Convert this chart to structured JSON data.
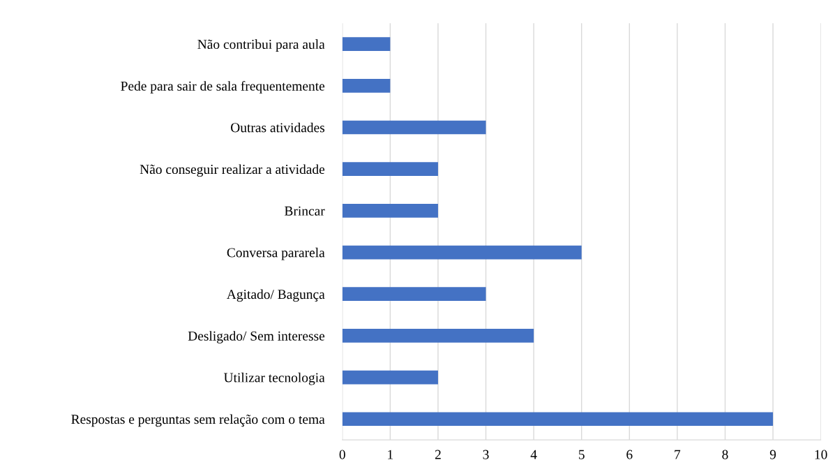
{
  "chart_data": {
    "type": "bar",
    "orientation": "horizontal",
    "categories": [
      "Não contribui para aula",
      "Pede para sair de sala frequentemente",
      "Outras atividades",
      "Não conseguir realizar a atividade",
      "Brincar",
      "Conversa pararela",
      "Agitado/ Bagunça",
      "Desligado/ Sem interesse",
      "Utilizar tecnologia",
      "Respostas e perguntas sem relação com o tema"
    ],
    "values": [
      1,
      1,
      3,
      2,
      2,
      5,
      3,
      4,
      2,
      9
    ],
    "color": "#4472c4",
    "xlim": [
      0,
      10
    ],
    "xticks": [
      0,
      1,
      2,
      3,
      4,
      5,
      6,
      7,
      8,
      9,
      10
    ],
    "grid": "x",
    "legend": false
  }
}
